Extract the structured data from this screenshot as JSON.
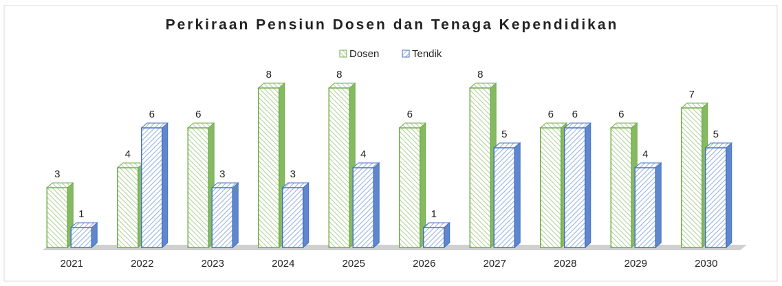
{
  "chart_data": {
    "type": "bar3d",
    "title": "Perkiraan Pensiun Dosen dan Tenaga Kependidikan",
    "categories": [
      "2021",
      "2022",
      "2023",
      "2024",
      "2025",
      "2026",
      "2027",
      "2028",
      "2029",
      "2030"
    ],
    "series": [
      {
        "name": "Dosen",
        "color": "#70ad47",
        "values": [
          3,
          4,
          6,
          8,
          8,
          6,
          8,
          6,
          6,
          7
        ]
      },
      {
        "name": "Tendik",
        "color": "#4472c4",
        "values": [
          1,
          6,
          3,
          3,
          4,
          1,
          5,
          6,
          4,
          5
        ]
      }
    ],
    "legend": "top",
    "data_labels": true
  }
}
